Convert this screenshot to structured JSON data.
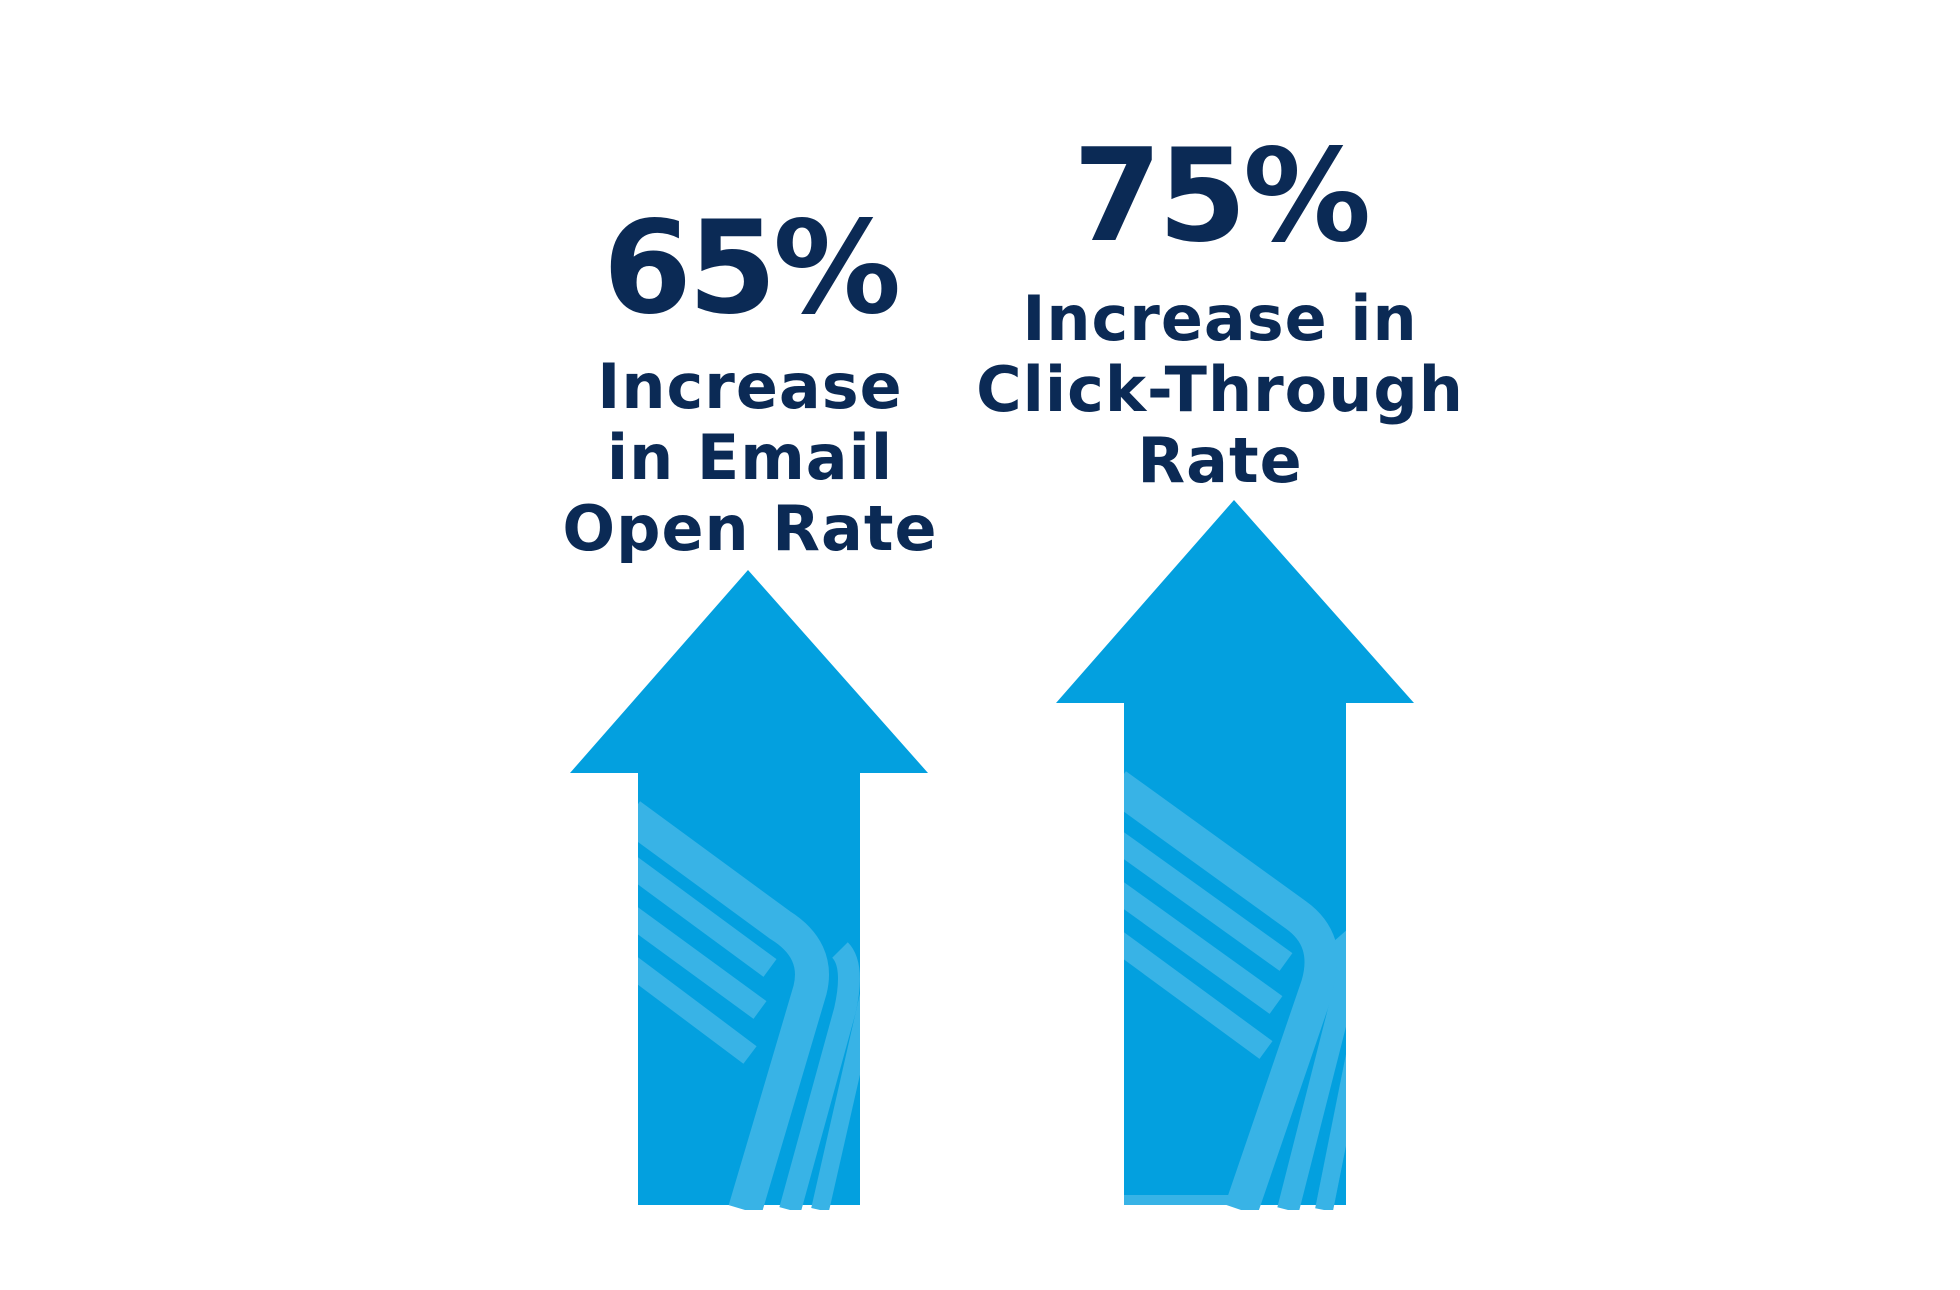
{
  "stats": [
    {
      "value": "65%",
      "caption": "Increase\nin Email\nOpen Rate"
    },
    {
      "value": "75%",
      "caption": "Increase in\nClick-Through\nRate"
    }
  ],
  "colors": {
    "text": "#0b2a55",
    "arrow": "#03a0df",
    "arrow_pattern": "#38b3e6",
    "background": "#ffffff"
  },
  "icons": [
    "up-arrow-icon",
    "up-arrow-icon"
  ]
}
